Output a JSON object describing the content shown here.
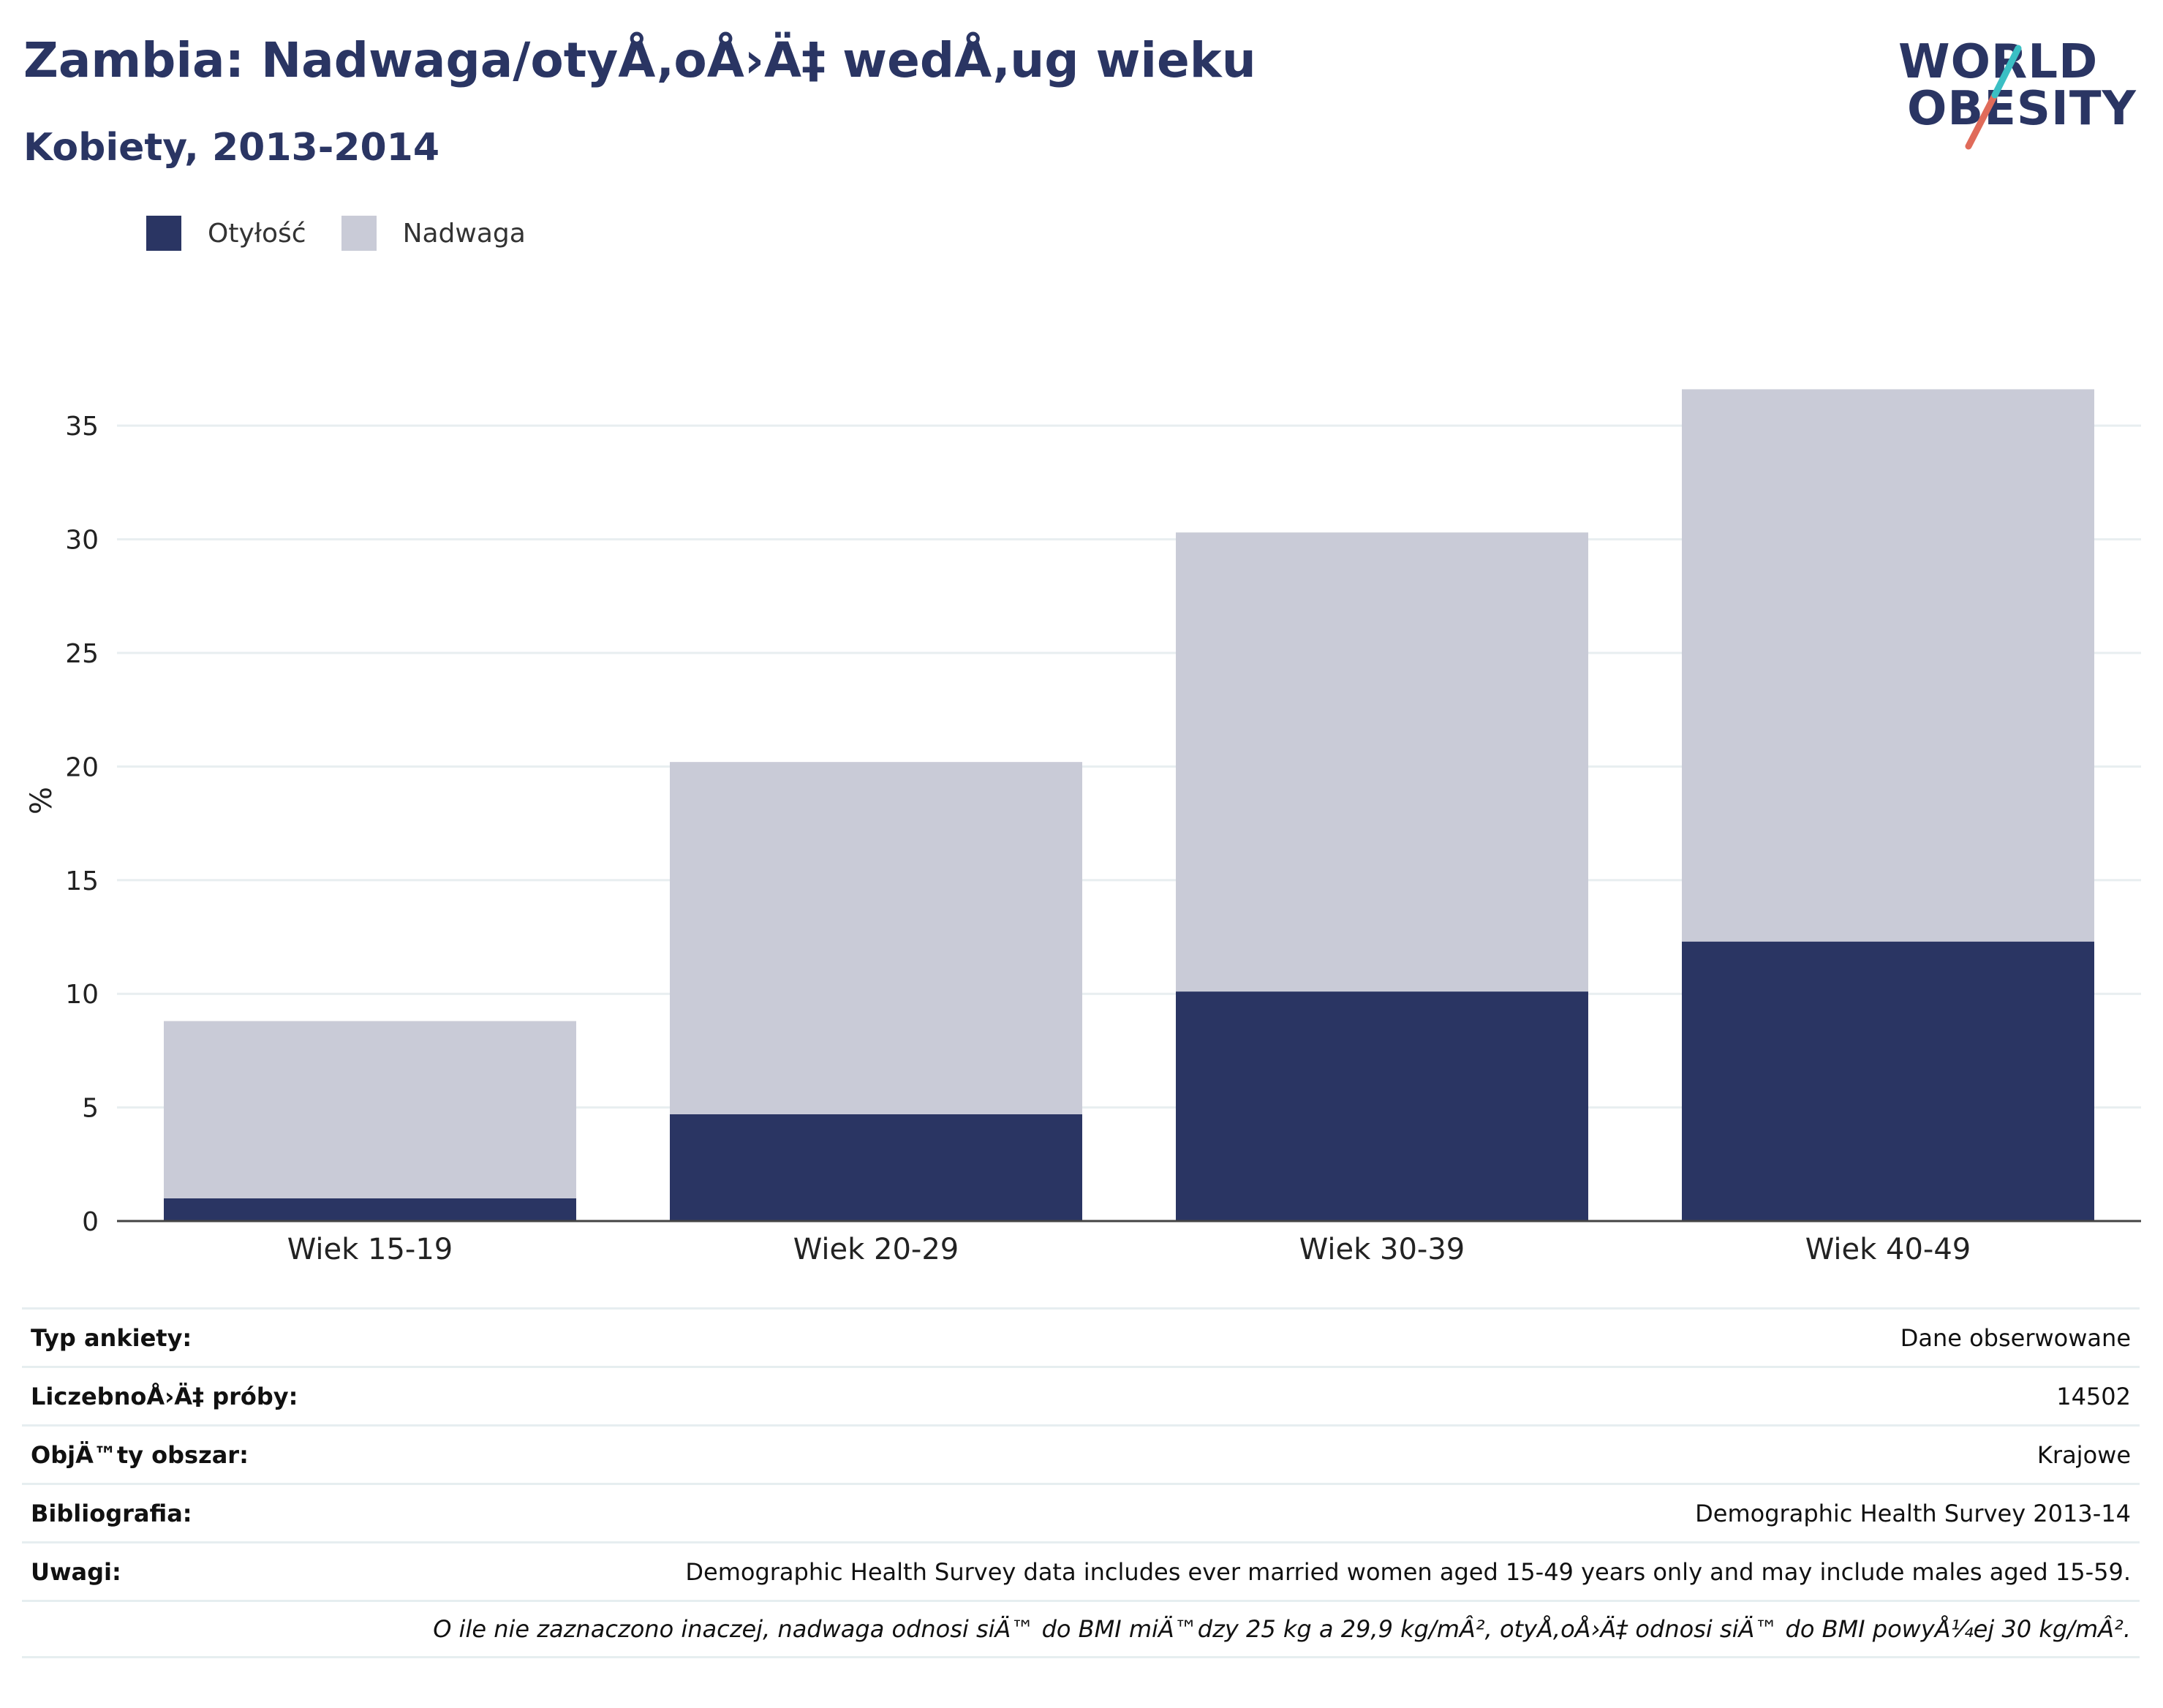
{
  "header": {
    "title": "Zambia: Nadwaga/otyÅ‚oÅ›Ä‡ wedÅ‚ug wieku",
    "subtitle": "Kobiety, 2013-2014"
  },
  "logo": {
    "line1": "WORLD",
    "line2": "OBESITY"
  },
  "colors": {
    "obesity": "#2a3563",
    "overweight": "#c9cbd7",
    "text": "#2a3563",
    "accent_teal": "#3bbfc4",
    "accent_red": "#e06b5a"
  },
  "chart_data": {
    "type": "bar",
    "stacked": true,
    "categories": [
      "Wiek 15-19",
      "Wiek 20-29",
      "Wiek 30-39",
      "Wiek 40-49"
    ],
    "series": [
      {
        "name": "Otyłość",
        "values": [
          1.0,
          4.7,
          10.1,
          12.3
        ]
      },
      {
        "name": "Nadwaga",
        "values": [
          7.8,
          15.5,
          20.2,
          24.3
        ]
      }
    ],
    "totals": [
      8.8,
      20.2,
      30.3,
      36.6
    ],
    "ylabel": "%",
    "ylim": [
      0,
      37
    ],
    "yticks": [
      0,
      5,
      10,
      15,
      20,
      25,
      30,
      35
    ],
    "grid": true,
    "legend_position": "top-left"
  },
  "info": {
    "rows": [
      {
        "label": "Typ ankiety:",
        "value": "Dane obserwowane"
      },
      {
        "label": "LiczebnoÅ›Ä‡ próby:",
        "value": "14502"
      },
      {
        "label": "ObjÄ™ty obszar:",
        "value": "Krajowe"
      },
      {
        "label": "Bibliografia:",
        "value": "Demographic Health Survey 2013-14"
      },
      {
        "label": "Uwagi:",
        "value": "Demographic Health Survey data includes ever married women aged 15-49 years only and may include males aged 15-59."
      }
    ],
    "note": "O ile nie zaznaczono inaczej, nadwaga odnosi siÄ™ do BMI miÄ™dzy 25 kg a 29,9 kg/mÂ², otyÅ‚oÅ›Ä‡ odnosi siÄ™ do BMI powyÅ¼ej 30 kg/mÂ²."
  }
}
